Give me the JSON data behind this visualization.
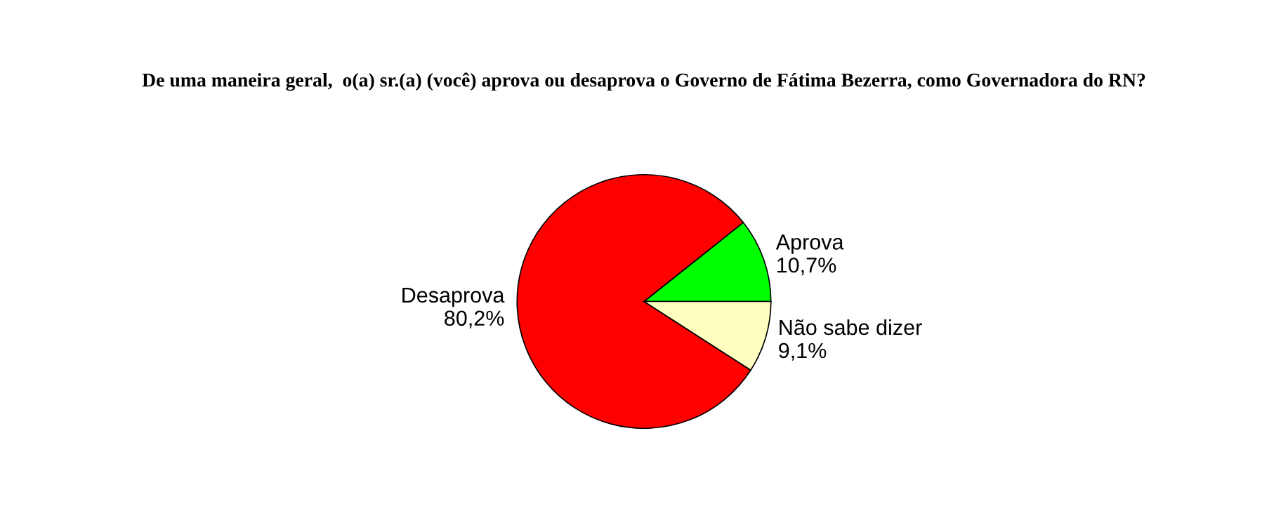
{
  "chart_data": {
    "type": "pie",
    "title": "De uma maneira geral,  o(a) sr.(a) (você) aprova ou desaprova o Governo de Fátima Bezerra, como Governadora do RN?",
    "categories": [
      "Aprova",
      "Desaprova",
      "Não sabe dizer"
    ],
    "values": [
      10.7,
      80.2,
      9.1
    ],
    "value_labels": [
      "10,7%",
      "80,2%",
      "9,1%"
    ],
    "colors": [
      "#00ff00",
      "#ff0000",
      "#ffffc0"
    ],
    "legend": false
  }
}
